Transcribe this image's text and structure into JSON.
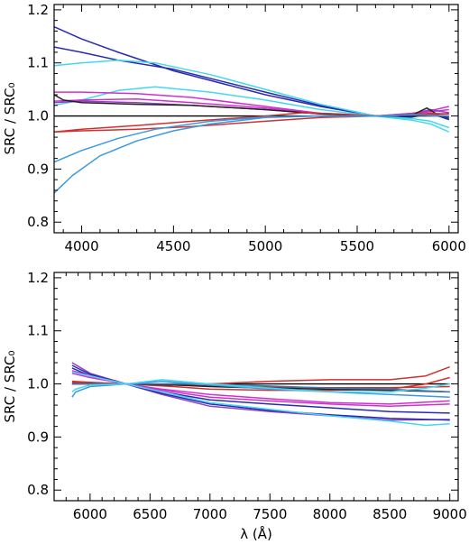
{
  "chart_data": [
    {
      "type": "line",
      "xlabel": "",
      "ylabel": "SRC / SRC₀",
      "xlim": [
        3850,
        6050
      ],
      "ylim": [
        0.78,
        1.21
      ],
      "xticks": [
        4000,
        4500,
        5000,
        5500,
        6000
      ],
      "yticks": [
        0.8,
        0.9,
        1.0,
        1.1,
        1.2
      ],
      "xtick_labels": [
        "4000",
        "4500",
        "5000",
        "5500",
        "6000"
      ],
      "ytick_labels": [
        "0.8",
        "0.9",
        "1.0",
        "1.1",
        "1.2"
      ],
      "reference_line": 1.0,
      "series": [
        {
          "color": "#2a2ab0",
          "x": [
            3850,
            4000,
            4200,
            4500,
            5000,
            5300,
            5600,
            5800,
            5900,
            6000
          ],
          "values": [
            1.168,
            1.145,
            1.12,
            1.085,
            1.04,
            1.018,
            1.0,
            0.998,
            1.005,
            0.993
          ]
        },
        {
          "color": "#2a2ab0",
          "x": [
            3850,
            4000,
            4200,
            4500,
            5000,
            5300,
            5600,
            5800,
            5900,
            6000
          ],
          "values": [
            1.13,
            1.12,
            1.105,
            1.088,
            1.045,
            1.02,
            1.0,
            0.998,
            1.005,
            0.995
          ]
        },
        {
          "color": "#44d8ee",
          "x": [
            3850,
            4000,
            4200,
            4400,
            4700,
            5000,
            5300,
            5600,
            5800,
            5900,
            6000
          ],
          "values": [
            1.095,
            1.1,
            1.105,
            1.1,
            1.078,
            1.05,
            1.022,
            1.0,
            0.992,
            0.985,
            0.97
          ]
        },
        {
          "color": "#44d8ee",
          "x": [
            3850,
            4000,
            4200,
            4400,
            4700,
            5000,
            5300,
            5600,
            5800,
            5900,
            6000
          ],
          "values": [
            1.02,
            1.03,
            1.048,
            1.055,
            1.045,
            1.03,
            1.012,
            1.0,
            0.995,
            0.99,
            0.978
          ]
        },
        {
          "color": "#d030d0",
          "x": [
            3850,
            4000,
            4300,
            4600,
            5000,
            5300,
            5600,
            5800,
            5900,
            6000
          ],
          "values": [
            1.045,
            1.045,
            1.042,
            1.035,
            1.018,
            1.005,
            1.0,
            1.005,
            1.008,
            1.012
          ]
        },
        {
          "color": "#d030d0",
          "x": [
            3850,
            4000,
            4300,
            4600,
            5000,
            5300,
            5600,
            5800,
            5900,
            6000
          ],
          "values": [
            1.028,
            1.03,
            1.032,
            1.025,
            1.015,
            1.005,
            1.0,
            1.005,
            1.01,
            1.018
          ]
        },
        {
          "color": "#9040c0",
          "x": [
            3850,
            4000,
            4300,
            4600,
            5000,
            5300,
            5600,
            5800,
            5900,
            6000
          ],
          "values": [
            1.025,
            1.028,
            1.025,
            1.02,
            1.012,
            1.004,
            1.0,
            1.004,
            1.012,
            1.006
          ]
        },
        {
          "color": "#222222",
          "x": [
            3850,
            3900,
            4000,
            4300,
            4600,
            5000,
            5300,
            5600,
            5800,
            5880,
            5950,
            6000
          ],
          "values": [
            1.04,
            1.03,
            1.025,
            1.022,
            1.02,
            1.012,
            1.004,
            1.0,
            1.002,
            1.015,
            1.0,
            0.998
          ]
        },
        {
          "color": "#000000",
          "x": [
            3850,
            6000
          ],
          "values": [
            1.0,
            1.0
          ]
        },
        {
          "color": "#d03030",
          "x": [
            3850,
            4000,
            4300,
            4600,
            5000,
            5300,
            5600,
            5800,
            5900,
            6000
          ],
          "values": [
            0.97,
            0.972,
            0.975,
            0.98,
            0.99,
            0.997,
            1.0,
            1.003,
            1.005,
            1.004
          ]
        },
        {
          "color": "#d03030",
          "x": [
            3850,
            4000,
            4300,
            4600,
            5000,
            5200,
            5400,
            5600,
            5800,
            6000
          ],
          "values": [
            0.97,
            0.975,
            0.982,
            0.99,
            1.0,
            1.006,
            1.004,
            1.0,
            1.002,
            1.004
          ]
        },
        {
          "color": "#3a9ae0",
          "x": [
            3850,
            4000,
            4200,
            4400,
            4700,
            5000,
            5300,
            5600,
            5800,
            6000
          ],
          "values": [
            0.913,
            0.935,
            0.958,
            0.975,
            0.99,
            0.998,
            1.0,
            1.0,
            1.002,
            1.0
          ]
        },
        {
          "color": "#3a9ae0",
          "x": [
            3850,
            3950,
            4100,
            4300,
            4500,
            4700,
            5000,
            5300,
            5600,
            5800,
            6000
          ],
          "values": [
            0.855,
            0.888,
            0.925,
            0.953,
            0.972,
            0.985,
            0.997,
            1.0,
            1.0,
            1.002,
            1.0
          ]
        }
      ]
    },
    {
      "type": "line",
      "xlabel": "λ (Å)",
      "ylabel": "SRC / SRC₀",
      "xlim": [
        5700,
        9070
      ],
      "ylim": [
        0.78,
        1.21
      ],
      "xticks": [
        6000,
        6500,
        7000,
        7500,
        8000,
        8500,
        9000
      ],
      "yticks": [
        0.8,
        0.9,
        1.0,
        1.1,
        1.2
      ],
      "xtick_labels": [
        "6000",
        "6500",
        "7000",
        "7500",
        "8000",
        "8500",
        "9000"
      ],
      "ytick_labels": [
        "0.8",
        "0.9",
        "1.0",
        "1.1",
        "1.2"
      ],
      "reference_line": 1.0,
      "series": [
        {
          "color": "#000000",
          "x": [
            5850,
            9000
          ],
          "values": [
            1.0,
            1.0
          ]
        },
        {
          "color": "#d03030",
          "x": [
            5850,
            6000,
            6300,
            6700,
            7000,
            7500,
            8000,
            8500,
            8800,
            9000
          ],
          "values": [
            1.005,
            1.003,
            1.0,
            0.998,
            1.0,
            1.005,
            1.008,
            1.008,
            1.015,
            1.032
          ]
        },
        {
          "color": "#d03030",
          "x": [
            5850,
            6000,
            6300,
            6700,
            7000,
            7500,
            8000,
            8500,
            8800,
            9000
          ],
          "values": [
            1.002,
            1.002,
            1.0,
            0.995,
            0.99,
            0.988,
            0.988,
            0.99,
            1.0,
            1.012
          ]
        },
        {
          "color": "#d03030",
          "x": [
            5850,
            6000,
            6300,
            6700,
            7000,
            7500,
            8000,
            8500,
            9000
          ],
          "values": [
            1.003,
            1.002,
            1.0,
            0.998,
            0.996,
            0.994,
            0.993,
            0.993,
            0.995
          ]
        },
        {
          "color": "#222222",
          "x": [
            5850,
            6000,
            6300,
            6700,
            7000,
            7500,
            8000,
            8500,
            9000
          ],
          "values": [
            1.0,
            1.0,
            1.0,
            0.998,
            0.995,
            0.992,
            0.99,
            0.988,
            0.985
          ]
        },
        {
          "color": "#3a7ab0",
          "x": [
            5850,
            6000,
            6300,
            6700,
            7000,
            7500,
            8000,
            8500,
            9000
          ],
          "values": [
            1.0,
            1.0,
            1.0,
            1.0,
            1.0,
            0.996,
            0.992,
            0.99,
            0.985
          ]
        },
        {
          "color": "#3a9ae0",
          "x": [
            5850,
            5880,
            6000,
            6300,
            6600,
            7000,
            7500,
            8000,
            8500,
            9000
          ],
          "values": [
            0.975,
            0.985,
            0.995,
            1.0,
            1.005,
            0.998,
            0.99,
            0.985,
            0.98,
            0.975
          ]
        },
        {
          "color": "#44d8ee",
          "x": [
            5850,
            5880,
            6000,
            6300,
            6600,
            7000,
            7500,
            8000,
            8500,
            8800,
            9000
          ],
          "values": [
            0.985,
            0.99,
            0.998,
            1.0,
            1.008,
            1.0,
            0.992,
            0.985,
            0.985,
            0.992,
            1.0
          ]
        },
        {
          "color": "#9040c0",
          "x": [
            5850,
            6000,
            6300,
            6600,
            7000,
            7500,
            8000,
            8500,
            9000
          ],
          "values": [
            1.04,
            1.02,
            1.0,
            0.98,
            0.958,
            0.948,
            0.94,
            0.932,
            0.933
          ]
        },
        {
          "color": "#2a2ab0",
          "x": [
            5850,
            6000,
            6300,
            6600,
            7000,
            7500,
            8000,
            8500,
            9000
          ],
          "values": [
            1.035,
            1.018,
            1.0,
            0.982,
            0.962,
            0.95,
            0.942,
            0.935,
            0.932
          ]
        },
        {
          "color": "#2a2ab0",
          "x": [
            5850,
            6000,
            6300,
            6600,
            7000,
            7500,
            8000,
            8500,
            9000
          ],
          "values": [
            1.03,
            1.015,
            1.0,
            0.985,
            0.97,
            0.962,
            0.955,
            0.948,
            0.945
          ]
        },
        {
          "color": "#d030d0",
          "x": [
            5850,
            6000,
            6300,
            6600,
            7000,
            7500,
            8000,
            8500,
            9000
          ],
          "values": [
            1.025,
            1.015,
            1.0,
            0.988,
            0.975,
            0.968,
            0.962,
            0.958,
            0.962
          ]
        },
        {
          "color": "#d030d0",
          "x": [
            5850,
            6000,
            6300,
            6600,
            7000,
            7500,
            8000,
            8500,
            9000
          ],
          "values": [
            1.02,
            1.012,
            1.0,
            0.99,
            0.98,
            0.972,
            0.965,
            0.962,
            0.968
          ]
        },
        {
          "color": "#44d8ee",
          "x": [
            5850,
            6000,
            6300,
            6600,
            7000,
            7500,
            8000,
            8500,
            8800,
            9000
          ],
          "values": [
            1.022,
            1.015,
            1.0,
            0.985,
            0.965,
            0.952,
            0.94,
            0.93,
            0.922,
            0.925
          ]
        }
      ]
    }
  ]
}
